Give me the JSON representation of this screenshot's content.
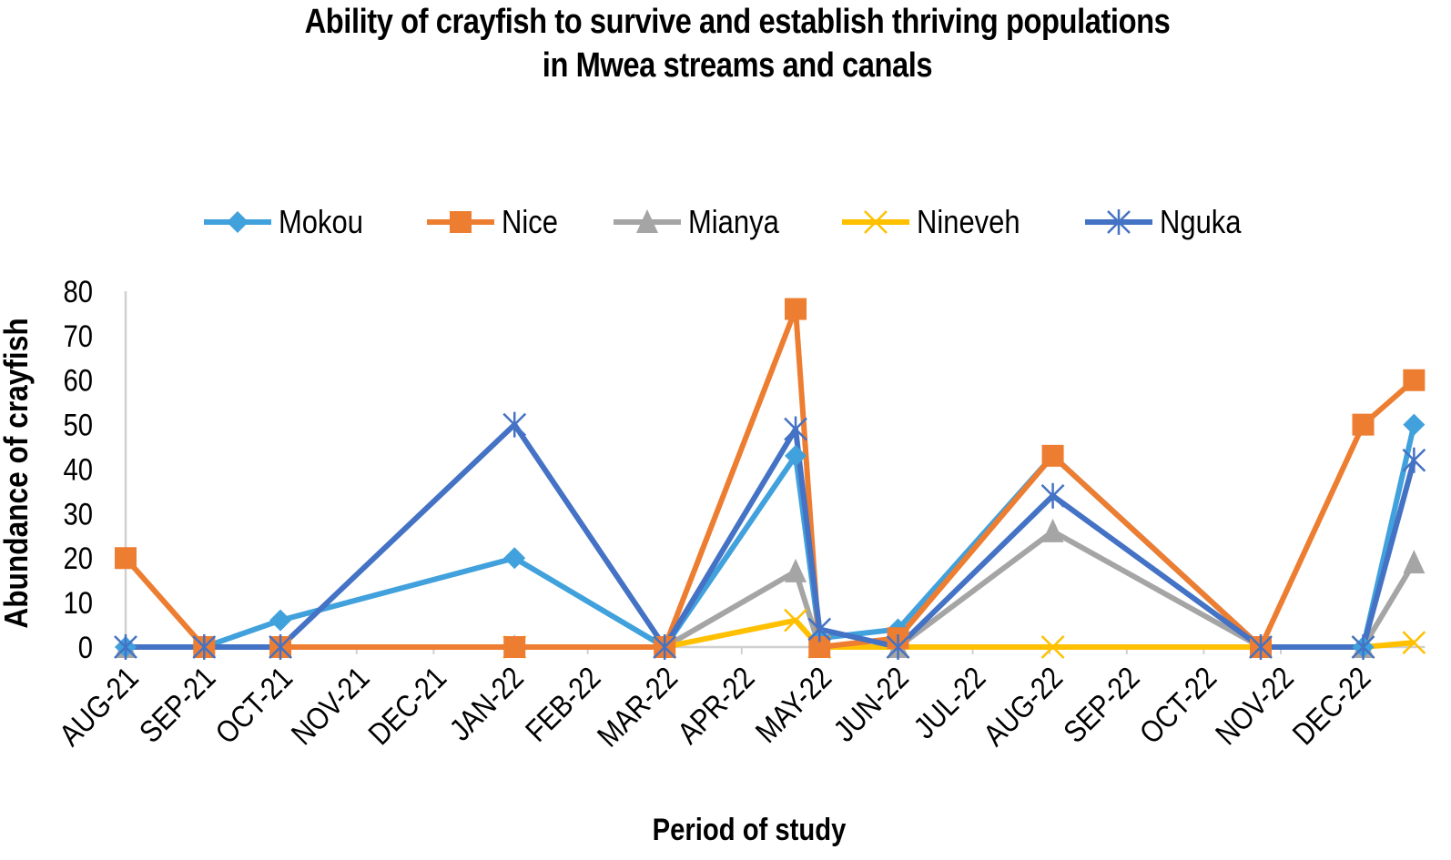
{
  "chart_data": {
    "type": "line",
    "title": [
      "Ability of crayfish to survive and establish thriving populations",
      "in Mwea streams and canals"
    ],
    "xlabel": "Period of study",
    "ylabel": "Abundance of  crayfish",
    "ylim": [
      0,
      80
    ],
    "yticks": [
      0,
      10,
      20,
      30,
      40,
      50,
      60,
      70,
      80
    ],
    "x_axis_type": "date (months since AUG-21)",
    "xlim_months": [
      0,
      16.73
    ],
    "xtick_labels": [
      "AUG-21",
      "SEP-21",
      "OCT-21",
      "NOV-21",
      "DEC-21",
      "JAN-22",
      "FEB-22",
      "MAR-22",
      "APR-22",
      "MAY-22",
      "JUN-22",
      "JUL-22",
      "AUG-22",
      "SEP-22",
      "OCT-22",
      "NOV-22",
      "DEC-22"
    ],
    "grid": false,
    "legend_position": "top",
    "x": [
      0,
      1.02,
      2.01,
      5.05,
      7.0,
      8.7,
      9.01,
      10.03,
      12.04,
      14.74,
      16.07,
      16.73
    ],
    "series": [
      {
        "name": "Mokou",
        "color": "#41A1DC",
        "marker": "diamond",
        "values": [
          0,
          0,
          6,
          20,
          0,
          43,
          2,
          4,
          43,
          0,
          0,
          50
        ]
      },
      {
        "name": "Nice",
        "color": "#ED7D31",
        "marker": "square",
        "values": [
          20,
          0,
          0,
          0,
          0,
          76,
          0,
          2,
          43,
          0,
          50,
          60
        ]
      },
      {
        "name": "Mianya",
        "color": "#A5A5A5",
        "marker": "triangle",
        "values": [
          0,
          0,
          0,
          0,
          0,
          17,
          0,
          0,
          26,
          0,
          0,
          19
        ]
      },
      {
        "name": "Nineveh",
        "color": "#FFC000",
        "marker": "x",
        "values": [
          null,
          null,
          0,
          0,
          0,
          6,
          0,
          0,
          0,
          0,
          0,
          1
        ]
      },
      {
        "name": "Nguka",
        "color": "#4472C4",
        "marker": "star",
        "values": [
          0,
          0,
          0,
          50,
          0,
          49,
          4,
          0,
          34,
          0,
          0,
          42
        ]
      }
    ]
  }
}
